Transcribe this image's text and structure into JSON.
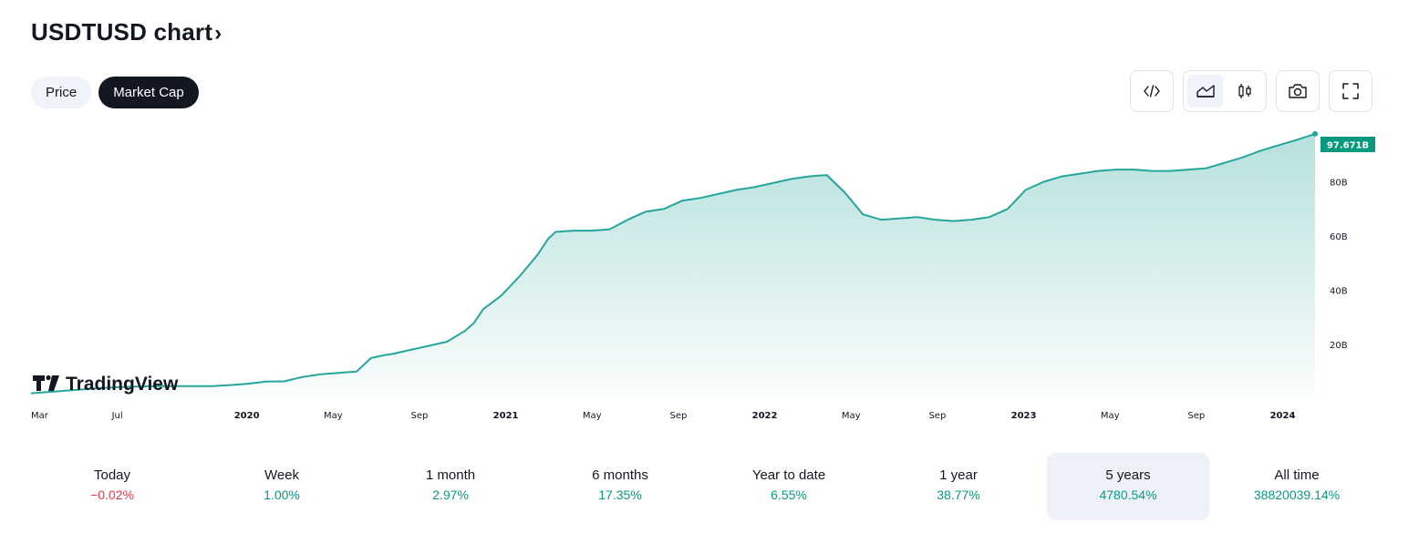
{
  "title": "USDTUSD chart",
  "title_chevron": "›",
  "tabs": [
    {
      "label": "Price",
      "active": false
    },
    {
      "label": "Market Cap",
      "active": true
    }
  ],
  "toolbar": {
    "embed_icon": "code-icon",
    "area_icon": "area-chart-icon",
    "candle_icon": "candles-icon",
    "snapshot_icon": "camera-icon",
    "fullscreen_icon": "fullscreen-icon"
  },
  "watermark": "TradingView",
  "chart_data": {
    "type": "area",
    "symbol": "USDTUSD",
    "metric": "Market Cap",
    "unit": "B",
    "x_tick_labels": [
      {
        "label": "Mar",
        "year_marker": false
      },
      {
        "label": "Jul",
        "year_marker": false
      },
      {
        "label": "2020",
        "year_marker": true
      },
      {
        "label": "May",
        "year_marker": false
      },
      {
        "label": "Sep",
        "year_marker": false
      },
      {
        "label": "2021",
        "year_marker": true
      },
      {
        "label": "May",
        "year_marker": false
      },
      {
        "label": "Sep",
        "year_marker": false
      },
      {
        "label": "2022",
        "year_marker": true
      },
      {
        "label": "May",
        "year_marker": false
      },
      {
        "label": "Sep",
        "year_marker": false
      },
      {
        "label": "2023",
        "year_marker": true
      },
      {
        "label": "May",
        "year_marker": false
      },
      {
        "label": "Sep",
        "year_marker": false
      },
      {
        "label": "2024",
        "year_marker": true
      }
    ],
    "y_ticks": [
      20,
      40,
      60,
      80
    ],
    "y_tick_labels": [
      "20B",
      "40B",
      "60B",
      "80B"
    ],
    "ylim": [
      0,
      100
    ],
    "xlim_months": [
      0,
      59.5
    ],
    "last_value_label": "97.671B",
    "line_color": "#26a69a",
    "badge_color": "#089981",
    "series": [
      {
        "name": "Market Cap",
        "points": [
          [
            0,
            2.0
          ],
          [
            1,
            2.5
          ],
          [
            2,
            3.0
          ],
          [
            3,
            3.5
          ],
          [
            4,
            4.0
          ],
          [
            5,
            4.3
          ],
          [
            6,
            4.5
          ],
          [
            7,
            4.6
          ],
          [
            8,
            4.6
          ],
          [
            9,
            4.6
          ],
          [
            10,
            4.6
          ],
          [
            11,
            5.0
          ],
          [
            12,
            5.5
          ],
          [
            13,
            6.3
          ],
          [
            14,
            6.4
          ],
          [
            15,
            8.0
          ],
          [
            16,
            9.0
          ],
          [
            17,
            9.5
          ],
          [
            18,
            10.0
          ],
          [
            18.8,
            15.0
          ],
          [
            19.5,
            16.0
          ],
          [
            20,
            16.5
          ],
          [
            21,
            18.0
          ],
          [
            22,
            19.5
          ],
          [
            23,
            21.0
          ],
          [
            24,
            25.0
          ],
          [
            24.5,
            28.0
          ],
          [
            25,
            33.0
          ],
          [
            26,
            38.0
          ],
          [
            27,
            45.0
          ],
          [
            28,
            53.0
          ],
          [
            28.6,
            59.0
          ],
          [
            29,
            61.5
          ],
          [
            30,
            62.0
          ],
          [
            31,
            62.0
          ],
          [
            32,
            62.5
          ],
          [
            33,
            66.0
          ],
          [
            34,
            69.0
          ],
          [
            35,
            70.0
          ],
          [
            36,
            73.0
          ],
          [
            37,
            74.0
          ],
          [
            38,
            75.5
          ],
          [
            39,
            77.0
          ],
          [
            40,
            78.0
          ],
          [
            41,
            79.5
          ],
          [
            42,
            81.0
          ],
          [
            43,
            82.0
          ],
          [
            44,
            82.5
          ],
          [
            45,
            76.0
          ],
          [
            46,
            68.0
          ],
          [
            47,
            66.0
          ],
          [
            48,
            66.5
          ],
          [
            49,
            67.0
          ],
          [
            50,
            66.0
          ],
          [
            51,
            65.5
          ],
          [
            52,
            66.0
          ],
          [
            53,
            67.0
          ],
          [
            54,
            70.0
          ],
          [
            55,
            77.0
          ],
          [
            56,
            80.0
          ],
          [
            57,
            82.0
          ],
          [
            58,
            83.0
          ],
          [
            59,
            84.0
          ],
          [
            60,
            84.5
          ],
          [
            61,
            84.5
          ],
          [
            62,
            84.0
          ],
          [
            63,
            84.0
          ],
          [
            64,
            84.5
          ],
          [
            65,
            85.0
          ],
          [
            66,
            87.0
          ],
          [
            67,
            89.0
          ],
          [
            68,
            91.5
          ],
          [
            69,
            93.5
          ],
          [
            70,
            95.5
          ],
          [
            71,
            97.671
          ]
        ]
      }
    ]
  },
  "periods": [
    {
      "label": "Today",
      "value": "−0.02%",
      "sign": "neg",
      "selected": false
    },
    {
      "label": "Week",
      "value": "1.00%",
      "sign": "pos",
      "selected": false
    },
    {
      "label": "1 month",
      "value": "2.97%",
      "sign": "pos",
      "selected": false
    },
    {
      "label": "6 months",
      "value": "17.35%",
      "sign": "pos",
      "selected": false
    },
    {
      "label": "Year to date",
      "value": "6.55%",
      "sign": "pos",
      "selected": false
    },
    {
      "label": "1 year",
      "value": "38.77%",
      "sign": "pos",
      "selected": false
    },
    {
      "label": "5 years",
      "value": "4780.54%",
      "sign": "pos",
      "selected": true
    },
    {
      "label": "All time",
      "value": "38820039.14%",
      "sign": "pos",
      "selected": false
    }
  ]
}
